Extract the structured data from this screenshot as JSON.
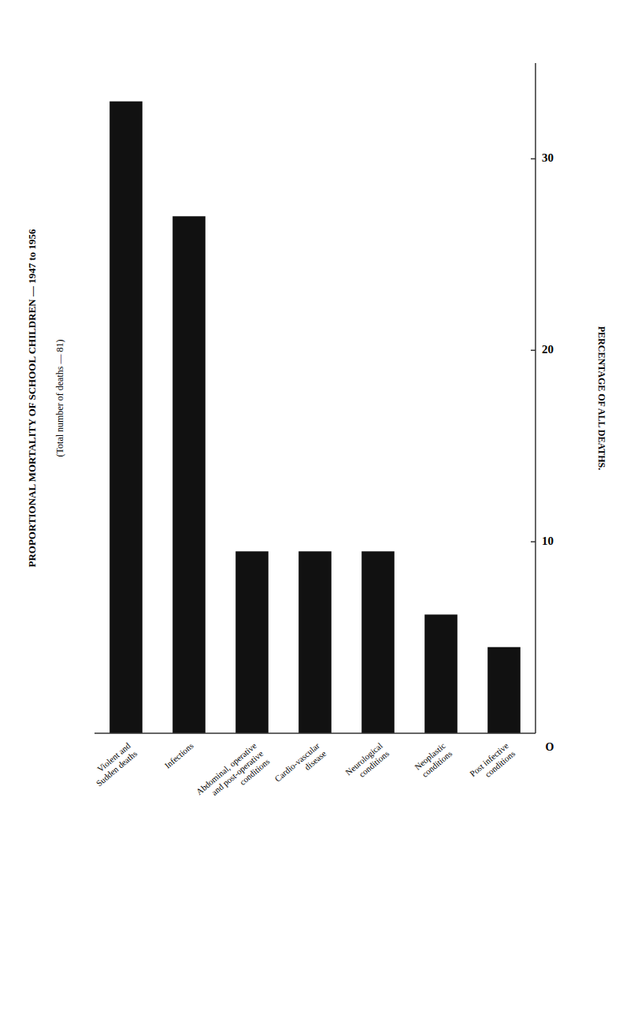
{
  "chart_data": {
    "type": "bar",
    "title": "PROPORTIONAL MORTALITY OF SCHOOL CHILDREN — 1947 to 1956",
    "subtitle": "(Total number of deaths — 81)",
    "y_label": "PERCENTAGE OF ALL DEATHS.",
    "categories": [
      "Violent and\nSudden deaths",
      "Infections",
      "Abdominal, operative\nand post-operative\nconditions",
      "Cardio-vascular\ndisease",
      "Neurological\nconditions",
      "Neoplastic\nconditions",
      "Post infective\nconditions"
    ],
    "values": [
      33.0,
      27.0,
      9.5,
      9.5,
      9.5,
      6.2,
      4.5
    ],
    "color": "#111111",
    "ylim": [
      0,
      35
    ],
    "yticks": [
      10,
      20,
      30
    ],
    "grid": false,
    "annotations": [
      {
        "text": "O"
      }
    ]
  }
}
